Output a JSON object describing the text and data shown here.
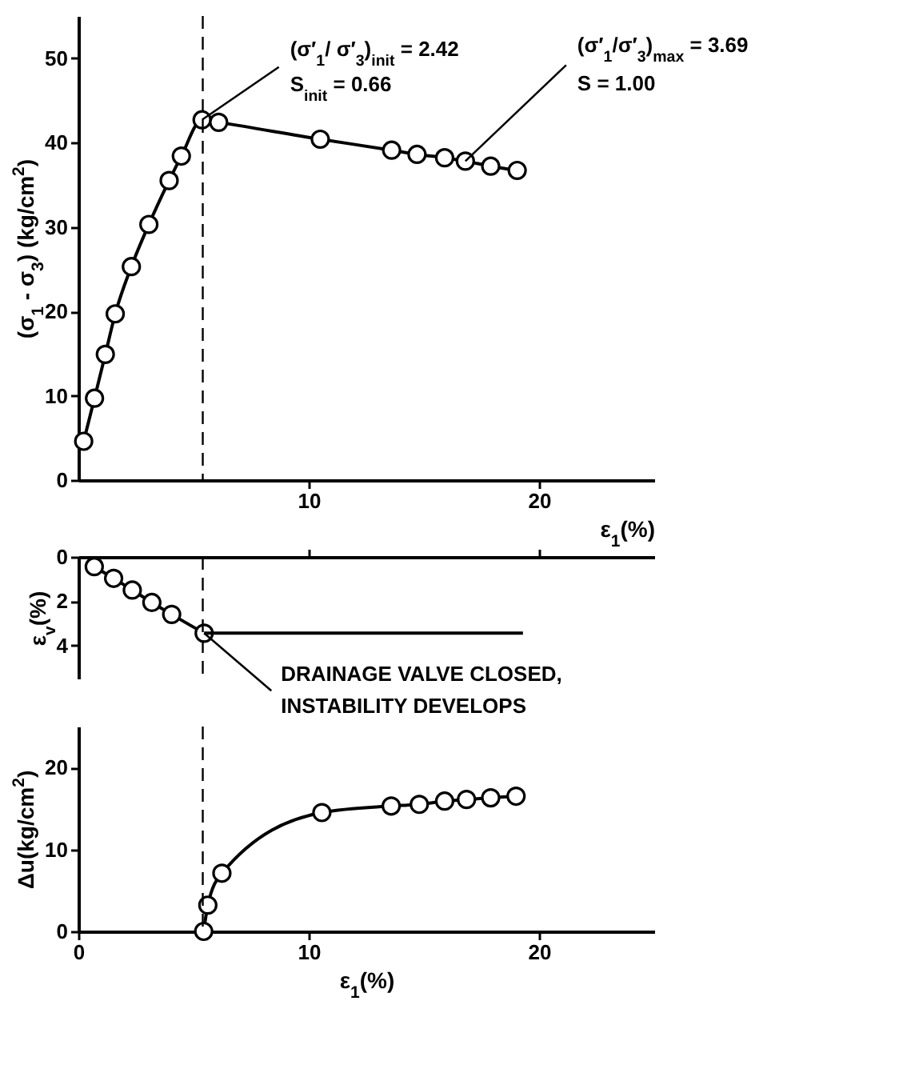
{
  "chart_data": [
    {
      "type": "line",
      "xlabel": "ε$_{1}$(%)",
      "ylabel": "(σ$_{1}$ - σ$_{3}$) (kg/cm$^{2}$)",
      "xlim": [
        0,
        25
      ],
      "ylim": [
        0,
        55
      ],
      "xticks": [
        10,
        20
      ],
      "yticks": [
        0,
        10,
        20,
        30,
        40,
        50
      ],
      "grid": false,
      "marker": "circle",
      "line_style": "solid",
      "series": [
        {
          "color": "#000000",
          "x": [
            0.23,
            0.7,
            1.17,
            1.6,
            2.3,
            3.06,
            3.94,
            4.47,
            5.37,
            6.09,
            10.5,
            13.6,
            14.7,
            15.9,
            16.8,
            17.9,
            19.05
          ],
          "values": [
            4.6,
            9.7,
            14.9,
            19.7,
            25.3,
            30.3,
            35.5,
            38.4,
            42.7,
            42.4,
            40.4,
            39.1,
            38.6,
            38.2,
            37.8,
            37.2,
            36.7
          ]
        }
      ],
      "ref_lines": [
        {
          "axis": "x",
          "value": 5.4,
          "line_style": "dashed",
          "color": "#000000"
        }
      ],
      "annotations": [
        {
          "text": "(σ′$_{1}$/ σ′$_{3}$)$_{init}$ = 2.42",
          "x": 5.37,
          "y": 42.7
        },
        {
          "text": "S$_{init}$ = 0.66",
          "x": 5.37,
          "y": 42.7
        },
        {
          "text": "(σ′$_{1}$/σ′$_{3}$)$_{max}$ = 3.69",
          "x": 16.8,
          "y": 37.8
        },
        {
          "text": "S = 1.00",
          "x": 16.8,
          "y": 37.8
        }
      ]
    },
    {
      "type": "line",
      "ylabel": "ε$_{v}$(%)",
      "xlim": [
        0,
        25
      ],
      "ylim": [
        5.5,
        0
      ],
      "xticks": [
        10,
        20
      ],
      "yticks": [
        0,
        2,
        4
      ],
      "grid": false,
      "marker": "circle",
      "line_style": "solid",
      "tick_labels": "y",
      "series": [
        {
          "color": "#000000",
          "x": [
            0.69,
            1.53,
            2.34,
            3.19,
            4.05,
            5.46
          ],
          "values": [
            0.44,
            0.97,
            1.5,
            2.06,
            2.6,
            3.45
          ]
        },
        {
          "color": "#000000",
          "marker": "none",
          "x": [
            5.46,
            19.3
          ],
          "values": [
            3.45,
            3.45
          ]
        }
      ],
      "ref_lines": [
        {
          "axis": "x",
          "value": 5.4,
          "line_style": "dashed",
          "color": "#000000"
        }
      ],
      "annotations": [
        {
          "text": "DRAINAGE VALVE CLOSED,",
          "x": 5.46,
          "y": 3.45
        },
        {
          "text": "INSTABILITY DEVELOPS",
          "x": 5.46,
          "y": 3.45
        }
      ]
    },
    {
      "type": "line",
      "xlabel": "ε$_{1}$(%)",
      "ylabel": "Δu(kg/cm$^{2}$)",
      "xlim": [
        0,
        25
      ],
      "ylim": [
        0,
        25
      ],
      "xticks": [
        0,
        10,
        20
      ],
      "yticks": [
        0,
        10,
        20
      ],
      "grid": false,
      "marker": "circle",
      "line_style": "solid",
      "series": [
        {
          "color": "#000000",
          "x": [
            5.44,
            5.62,
            6.23,
            10.57,
            13.58,
            14.8,
            15.9,
            16.85,
            17.9,
            19.0
          ],
          "values": [
            0,
            3.2,
            7.1,
            14.5,
            15.3,
            15.5,
            15.9,
            16.1,
            16.3,
            16.5
          ]
        }
      ],
      "ref_lines": [
        {
          "axis": "x",
          "value": 5.4,
          "line_style": "dashed",
          "color": "#000000"
        }
      ]
    }
  ]
}
